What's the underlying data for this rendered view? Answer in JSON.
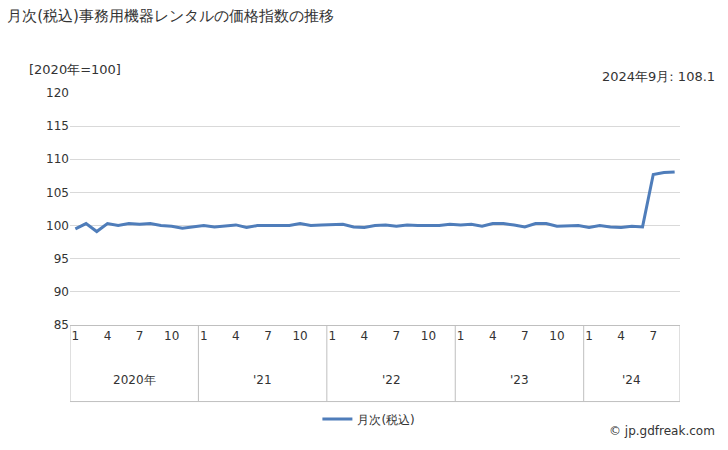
{
  "chart_data": {
    "type": "line",
    "title": "月次(税込)事務用機器レンタルの価格指数の推移",
    "y_label": "[2020年=100]",
    "annotations": [
      "2024年9月: 108.1"
    ],
    "source": "© jp.gdfreak.com",
    "categories": [
      "1",
      null,
      null,
      "4",
      null,
      null,
      "7",
      null,
      null,
      "10",
      null,
      null,
      "1",
      null,
      null,
      "4",
      null,
      null,
      "7",
      null,
      null,
      "10",
      null,
      null,
      "1",
      null,
      null,
      "4",
      null,
      null,
      "7",
      null,
      null,
      "10",
      null,
      null,
      "1",
      null,
      null,
      "4",
      null,
      null,
      "7",
      null,
      null,
      "10",
      null,
      null,
      "1",
      null,
      null,
      "4",
      null,
      null,
      "7",
      null,
      null
    ],
    "year_labels": [
      "2020年",
      "'21",
      "'22",
      "'23",
      "'24"
    ],
    "series": [
      {
        "name": "月次(税込)",
        "color": "#4f7dba",
        "values": [
          99.5,
          100.3,
          99.1,
          100.3,
          100.0,
          100.3,
          100.2,
          100.3,
          100.0,
          99.9,
          99.6,
          99.8,
          100.0,
          99.8,
          100.0,
          100.1,
          99.7,
          100.0,
          100.0,
          100.0,
          100.0,
          100.3,
          100.0,
          100.1,
          100.1,
          100.2,
          99.8,
          99.7,
          100.0,
          100.1,
          99.9,
          100.1,
          100.0,
          100.0,
          100.0,
          100.2,
          100.1,
          100.2,
          99.9,
          100.3,
          100.3,
          100.1,
          99.8,
          100.3,
          100.3,
          99.9,
          100.0,
          100.0,
          99.7,
          100.0,
          99.8,
          99.7,
          99.9,
          99.8,
          107.7,
          108.0,
          108.1
        ]
      }
    ],
    "ylim": [
      85,
      120
    ],
    "yticks": [
      85,
      90,
      95,
      100,
      105,
      110,
      115,
      120
    ],
    "grid": true,
    "legend": "bottom"
  }
}
